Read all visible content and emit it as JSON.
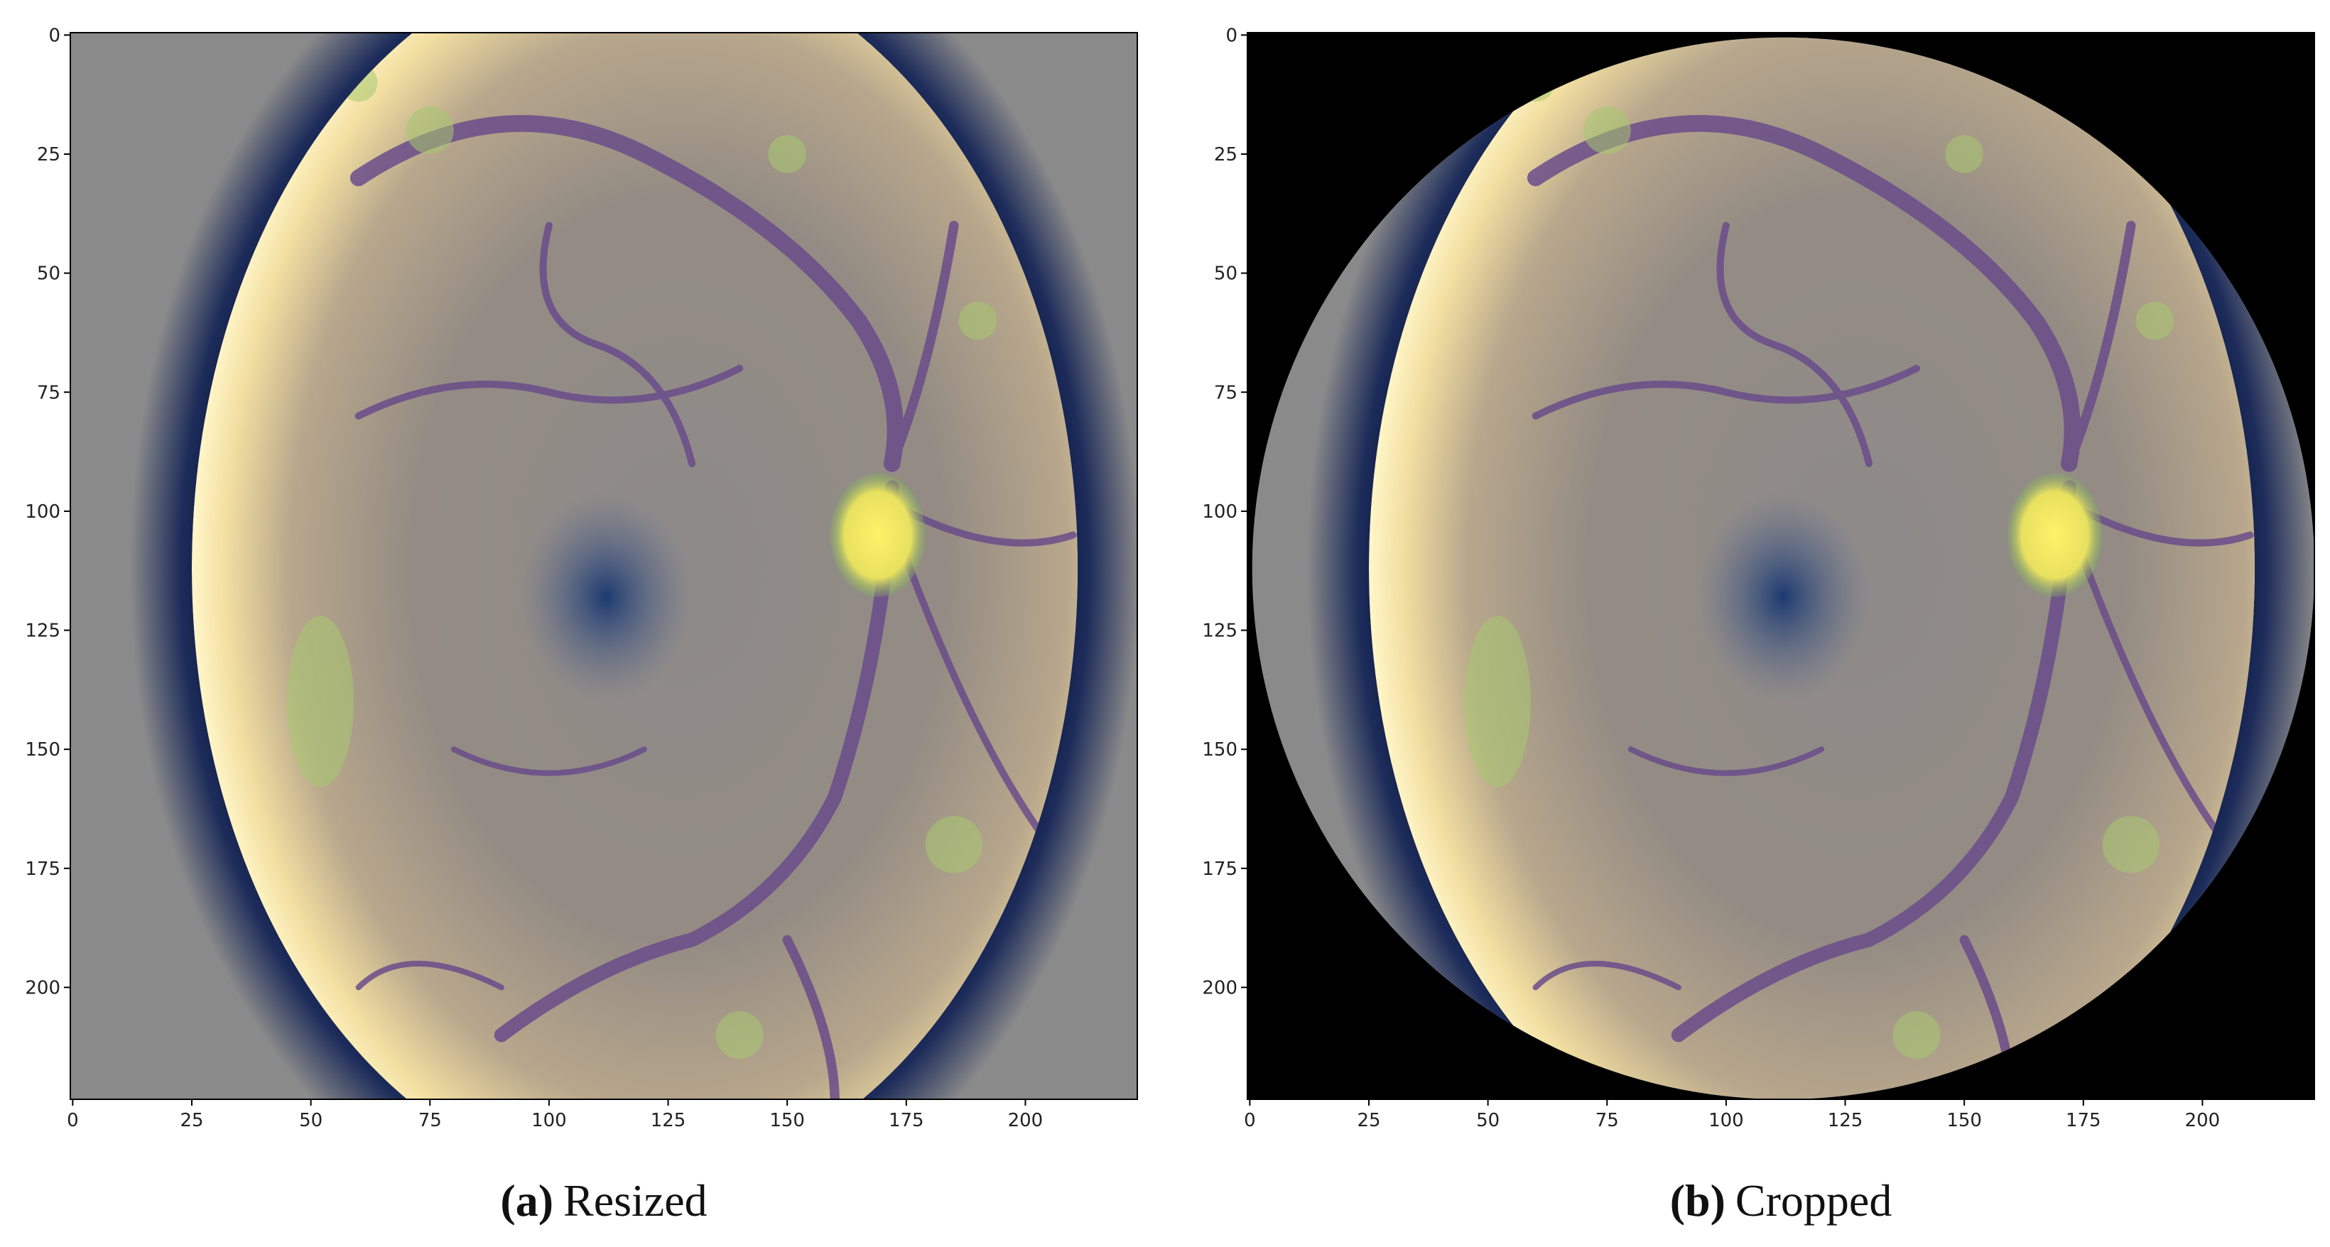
{
  "panels": [
    {
      "label": "(a)",
      "caption": "Resized",
      "xlim": [
        -0.5,
        223.5
      ],
      "ylim": [
        223.5,
        -0.5
      ],
      "xticks": [
        0,
        25,
        50,
        75,
        100,
        125,
        150,
        175,
        200
      ],
      "yticks": [
        0,
        25,
        50,
        75,
        100,
        125,
        150,
        175,
        200
      ]
    },
    {
      "label": "(b)",
      "caption": "Cropped",
      "xlim": [
        -0.5,
        223.5
      ],
      "ylim": [
        223.5,
        -0.5
      ],
      "xticks": [
        0,
        25,
        50,
        75,
        100,
        125,
        150,
        175,
        200
      ],
      "yticks": [
        0,
        25,
        50,
        75,
        100,
        125,
        150,
        175,
        200
      ]
    }
  ]
}
